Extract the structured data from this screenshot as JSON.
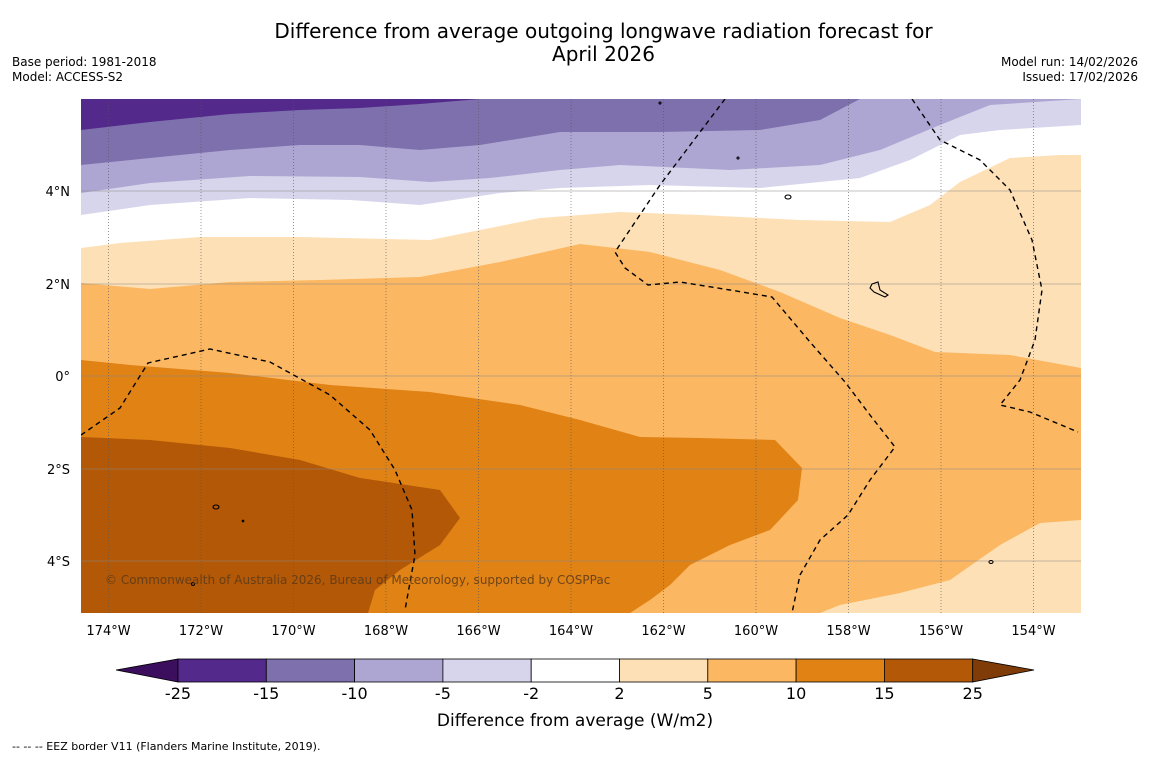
{
  "title": {
    "line1": "Difference from average outgoing longwave radiation forecast for",
    "line2": "April 2026"
  },
  "info_left": {
    "base_period": "Base period: 1981-2018",
    "model": "Model: ACCESS-S2"
  },
  "info_right": {
    "model_run": "Model run: 14/02/2026",
    "issued": "Issued: 17/02/2026"
  },
  "axes": {
    "lon_labels": [
      "174°W",
      "172°W",
      "170°W",
      "168°W",
      "166°W",
      "164°W",
      "162°W",
      "160°W",
      "158°W",
      "156°W",
      "154°W"
    ],
    "lat_labels": [
      "4°N",
      "2°N",
      "0°",
      "2°S",
      "4°S"
    ]
  },
  "copyright": "© Commonwealth of Australia 2026, Bureau of Meteorology, supported by COSPPac",
  "colorbar": {
    "title": "Difference from average (W/m2)",
    "ticks": [
      "-25",
      "-15",
      "-10",
      "-5",
      "-2",
      "2",
      "5",
      "10",
      "15",
      "25"
    ],
    "colors": [
      "#3b0f5e",
      "#53298b",
      "#7e70ad",
      "#aea6d2",
      "#d7d5eb",
      "#ffffff",
      "#fee0b6",
      "#fbb762",
      "#e08214",
      "#b35806",
      "#7f3b08"
    ]
  },
  "footer": "--  --  -- EEZ border V11 (Flanders Marine Institute, 2019)."
}
